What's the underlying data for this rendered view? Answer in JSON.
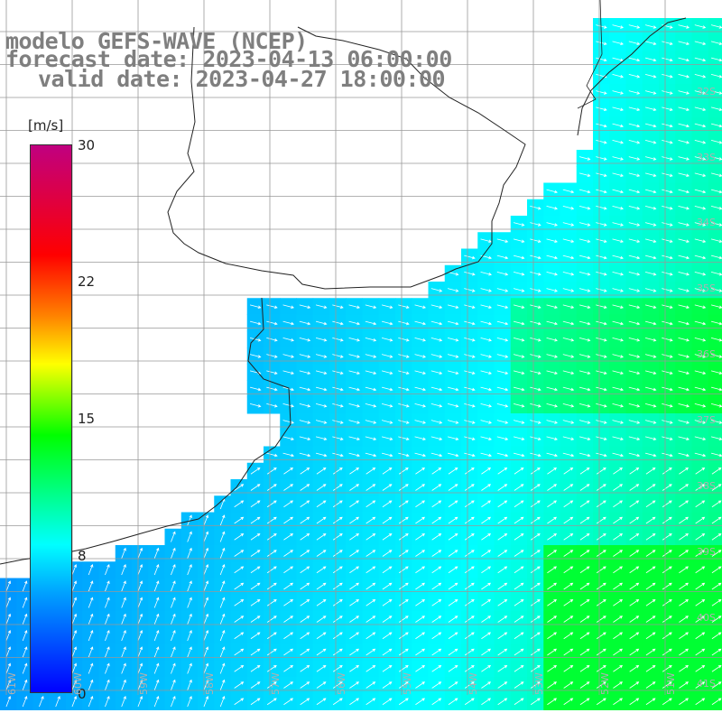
{
  "header": {
    "line1": "modelo GEFS-WAVE (NCEP)",
    "line2": "forecast date: 2023-04-13 06:00:00",
    "line3": "valid date: 2023-04-27 18:00:00"
  },
  "colorbar": {
    "unit": "[m/s]",
    "ticks": [
      "30",
      "22",
      "15",
      "8",
      "0"
    ],
    "tick_values": [
      30,
      22,
      15,
      8,
      0
    ],
    "range": [
      0,
      30
    ],
    "colors": [
      "#0000ff",
      "#00a0ff",
      "#00ffff",
      "#00ff00",
      "#ffff00",
      "#ff8000",
      "#ff0000",
      "#c00080"
    ]
  },
  "map": {
    "field": "wind speed",
    "land_color": "#ffffff",
    "grid": true,
    "lat_labels": [
      "32S",
      "33S",
      "34S",
      "35S",
      "36S",
      "37S",
      "38S",
      "39S",
      "40S",
      "41S"
    ],
    "lon_labels": [
      "61W",
      "60W",
      "59W",
      "58W",
      "57W",
      "56W",
      "55W",
      "54W",
      "53W",
      "52W",
      "51W"
    ]
  }
}
